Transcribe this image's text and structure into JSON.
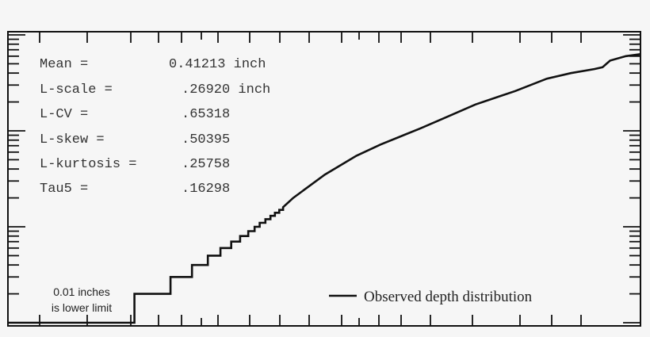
{
  "chart_data": {
    "type": "line",
    "title": "",
    "xlabel": "",
    "ylabel": "",
    "y_scale": "log",
    "ylim": [
      0.01,
      10.6
    ],
    "xlim": [
      0,
      100
    ],
    "grid": false,
    "legend_placement": "bottom-right",
    "line_color": "#111111",
    "series": [
      {
        "name": "Observed depth distribution",
        "step": true,
        "points": [
          [
            0,
            0.01
          ],
          [
            20.0,
            0.01
          ],
          [
            20.0,
            0.02
          ],
          [
            25.7,
            0.02
          ],
          [
            25.7,
            0.03
          ],
          [
            29.1,
            0.03
          ],
          [
            29.1,
            0.04
          ],
          [
            31.6,
            0.04
          ],
          [
            31.6,
            0.05
          ],
          [
            33.6,
            0.05
          ],
          [
            33.6,
            0.06
          ],
          [
            35.3,
            0.06
          ],
          [
            35.3,
            0.07
          ],
          [
            36.7,
            0.07
          ],
          [
            36.7,
            0.08
          ],
          [
            38.0,
            0.08
          ],
          [
            38.0,
            0.09
          ],
          [
            39.0,
            0.09
          ],
          [
            39.0,
            0.1
          ],
          [
            39.8,
            0.1
          ],
          [
            39.8,
            0.11
          ],
          [
            40.7,
            0.11
          ],
          [
            40.7,
            0.12
          ],
          [
            41.5,
            0.12
          ],
          [
            41.5,
            0.13
          ],
          [
            42.2,
            0.13
          ],
          [
            42.2,
            0.14
          ],
          [
            42.9,
            0.14
          ],
          [
            42.9,
            0.15
          ],
          [
            43.5,
            0.15
          ],
          [
            43.5,
            0.16
          ],
          [
            45.1,
            0.2
          ],
          [
            50.1,
            0.35
          ],
          [
            55.1,
            0.55
          ],
          [
            58.9,
            0.72
          ],
          [
            65.2,
            1.06
          ],
          [
            68.9,
            1.35
          ],
          [
            73.9,
            1.88
          ],
          [
            80.2,
            2.6
          ],
          [
            85.2,
            3.5
          ],
          [
            89.0,
            4.0
          ],
          [
            92.7,
            4.4
          ],
          [
            94.0,
            4.6
          ],
          [
            95.2,
            5.4
          ],
          [
            97.7,
            6.0
          ],
          [
            100,
            6.3
          ]
        ]
      }
    ],
    "annotations": {
      "stats": [
        {
          "label": "Mean =",
          "value": "0.41213 inch"
        },
        {
          "label": "L-scale =",
          "value": ".26920 inch"
        },
        {
          "label": "L-CV =",
          "value": ".65318"
        },
        {
          "label": "L-skew =",
          "value": ".50395"
        },
        {
          "label": "L-kurtosis =",
          "value": ".25758"
        },
        {
          "label": "Tau5 =",
          "value": ".16298"
        }
      ],
      "lower_limit_note": [
        "0.01 inches",
        "is lower limit"
      ]
    }
  }
}
